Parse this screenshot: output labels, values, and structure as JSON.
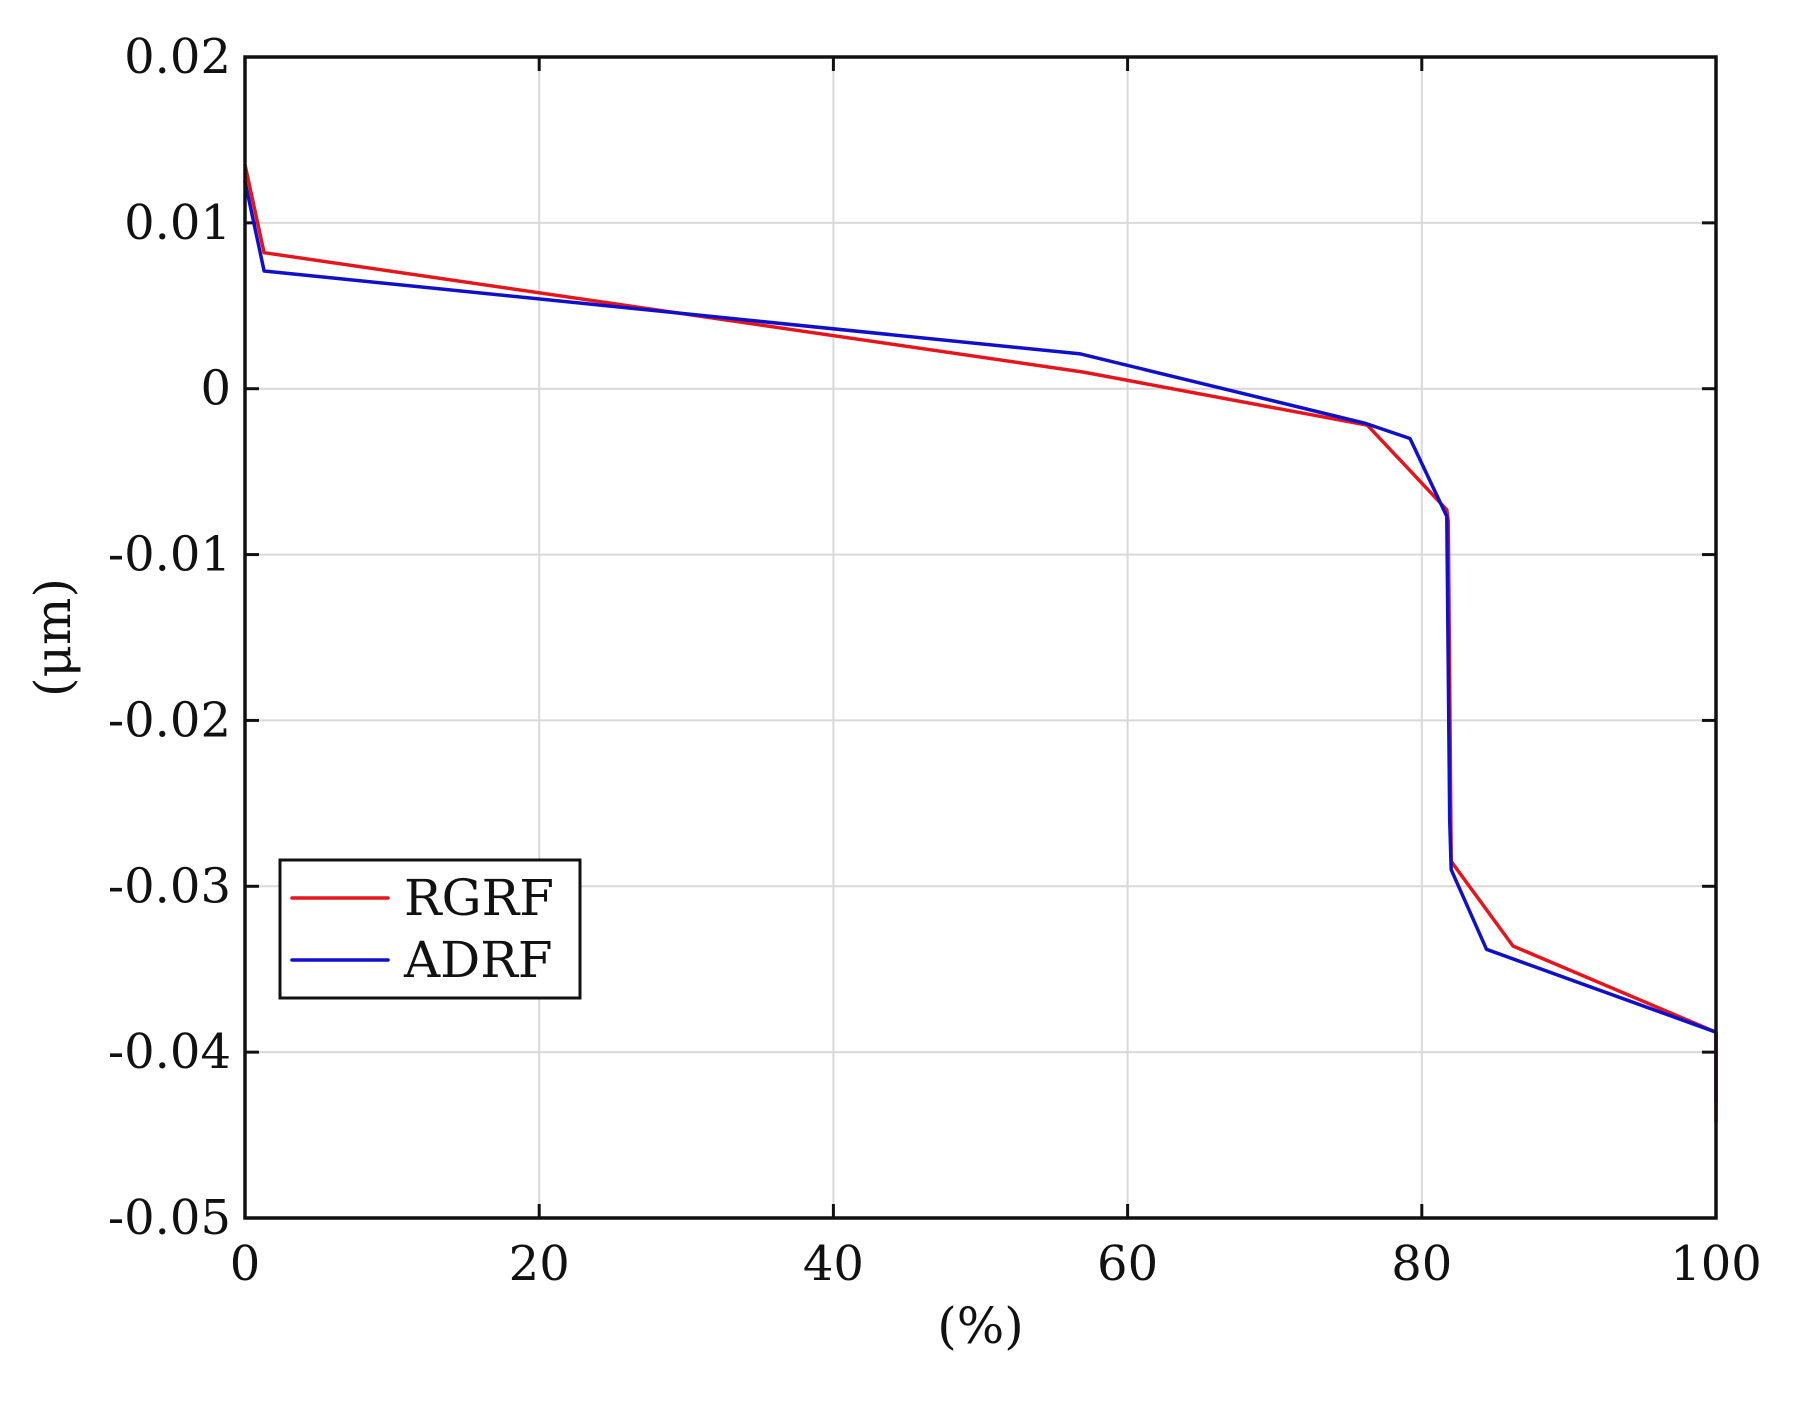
{
  "chart_data": {
    "type": "line",
    "title": "",
    "xlabel": "(%)",
    "ylabel": "(μm)",
    "xlim": [
      0,
      100
    ],
    "ylim": [
      -0.05,
      0.02
    ],
    "xticks": [
      0,
      20,
      40,
      60,
      80,
      100
    ],
    "xtick_labels": [
      "0",
      "20",
      "40",
      "60",
      "80",
      "100"
    ],
    "yticks": [
      0.02,
      0.01,
      0,
      -0.01,
      -0.02,
      -0.03,
      -0.04,
      -0.05
    ],
    "ytick_labels": [
      "0.02",
      "0.01",
      "0",
      "-0.01",
      "-0.02",
      "-0.03",
      "-0.04",
      "-0.05"
    ],
    "grid": true,
    "legend_position": "lower-left",
    "series": [
      {
        "name": "RGRF",
        "color": "#e8141c",
        "x": [
          0,
          1.3,
          57,
          76.3,
          81.7,
          81.8,
          82.0,
          86.2,
          100,
          100
        ],
        "y": [
          0.0135,
          0.0082,
          0.001,
          -0.0022,
          -0.0073,
          -0.008,
          -0.0285,
          -0.0336,
          -0.0388,
          -0.0442
        ]
      },
      {
        "name": "ADRF",
        "color": "#1010cc",
        "x": [
          0,
          1.3,
          56.8,
          76.2,
          79.2,
          81.7,
          81.9,
          82.0,
          84.4,
          100,
          100
        ],
        "y": [
          0.0125,
          0.0071,
          0.0021,
          -0.0021,
          -0.003,
          -0.0077,
          -0.026,
          -0.029,
          -0.0338,
          -0.0388,
          -0.043
        ]
      }
    ]
  }
}
